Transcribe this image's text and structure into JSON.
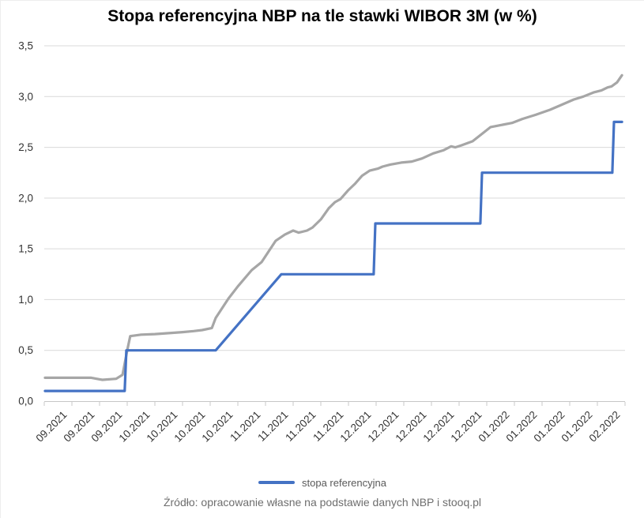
{
  "title": "Stopa referencyjna NBP na tle stawki WIBOR 3M (w %)",
  "source": "Źródło: opracowanie własne na podstawie danych NBP i stooq.pl",
  "legend": {
    "items": [
      {
        "label": "stopa referencyjna",
        "color": "#4472C4"
      }
    ]
  },
  "colors": {
    "accent_blue": "#4472C4",
    "line_gray": "#A6A6A6",
    "grid": "#D9D9D9",
    "axis": "#C6C6C6",
    "tick": "#C9C9C9",
    "tick_text": "#333333",
    "title_text": "#000000",
    "legend_text": "#595959",
    "source_text": "#6E6E6E"
  },
  "chart_data": {
    "type": "line",
    "title": "Stopa referencyjna NBP na tle stawki WIBOR 3M (w %)",
    "xlabel": "",
    "ylabel": "",
    "ylim": [
      0,
      3.5
    ],
    "grid": true,
    "legend_position": "bottom",
    "y_ticks": [
      [
        0.0,
        "0,0"
      ],
      [
        0.5,
        "0,5"
      ],
      [
        1.0,
        "1,0"
      ],
      [
        1.5,
        "1,5"
      ],
      [
        2.0,
        "2,0"
      ],
      [
        2.5,
        "2,5"
      ],
      [
        3.0,
        "3,0"
      ],
      [
        3.5,
        "3,5"
      ]
    ],
    "x_tick_labels": [
      "09.2021",
      "09.2021",
      "09.2021",
      "10.2021",
      "10.2021",
      "10.2021",
      "10.2021",
      "11.2021",
      "11.2021",
      "11.2021",
      "11.2021",
      "12.2021",
      "12.2021",
      "12.2021",
      "12.2021",
      "12.2021",
      "01.2022",
      "01.2022",
      "01.2022",
      "01.2022",
      "02.2022"
    ],
    "x_unit": "weekly categories, data x in category-index units 0..21",
    "series": [
      {
        "name": "WIBOR 3M",
        "color": "#A6A6A6",
        "width": 3.2,
        "in_legend": false,
        "points": [
          [
            0.03,
            0.23
          ],
          [
            1.0,
            0.23
          ],
          [
            1.7,
            0.23
          ],
          [
            2.1,
            0.21
          ],
          [
            2.6,
            0.22
          ],
          [
            2.83,
            0.26
          ],
          [
            3.0,
            0.5
          ],
          [
            3.11,
            0.64
          ],
          [
            3.5,
            0.655
          ],
          [
            4.0,
            0.66
          ],
          [
            4.5,
            0.67
          ],
          [
            5.0,
            0.68
          ],
          [
            5.4,
            0.69
          ],
          [
            5.71,
            0.7
          ],
          [
            6.06,
            0.72
          ],
          [
            6.2,
            0.82
          ],
          [
            6.66,
            1.01
          ],
          [
            7.0,
            1.13
          ],
          [
            7.5,
            1.29
          ],
          [
            7.86,
            1.37
          ],
          [
            8.37,
            1.58
          ],
          [
            8.7,
            1.64
          ],
          [
            9.0,
            1.68
          ],
          [
            9.2,
            1.66
          ],
          [
            9.5,
            1.68
          ],
          [
            9.7,
            1.71
          ],
          [
            10.0,
            1.79
          ],
          [
            10.29,
            1.9
          ],
          [
            10.51,
            1.96
          ],
          [
            10.71,
            1.99
          ],
          [
            11.0,
            2.08
          ],
          [
            11.23,
            2.14
          ],
          [
            11.49,
            2.22
          ],
          [
            11.77,
            2.27
          ],
          [
            12.06,
            2.29
          ],
          [
            12.23,
            2.31
          ],
          [
            12.51,
            2.33
          ],
          [
            12.91,
            2.35
          ],
          [
            13.29,
            2.36
          ],
          [
            13.66,
            2.39
          ],
          [
            14.06,
            2.44
          ],
          [
            14.43,
            2.47
          ],
          [
            14.71,
            2.51
          ],
          [
            14.86,
            2.5
          ],
          [
            15.09,
            2.52
          ],
          [
            15.49,
            2.56
          ],
          [
            15.86,
            2.64
          ],
          [
            16.14,
            2.7
          ],
          [
            16.91,
            2.74
          ],
          [
            17.29,
            2.78
          ],
          [
            17.77,
            2.82
          ],
          [
            18.29,
            2.87
          ],
          [
            18.71,
            2.92
          ],
          [
            19.14,
            2.97
          ],
          [
            19.49,
            3.0
          ],
          [
            19.86,
            3.04
          ],
          [
            20.14,
            3.06
          ],
          [
            20.37,
            3.09
          ],
          [
            20.51,
            3.1
          ],
          [
            20.71,
            3.14
          ],
          [
            20.89,
            3.21
          ]
        ]
      },
      {
        "name": "stopa referencyjna",
        "color": "#4472C4",
        "width": 3.2,
        "in_legend": true,
        "points": [
          [
            0.03,
            0.1
          ],
          [
            2.91,
            0.1
          ],
          [
            2.97,
            0.5
          ],
          [
            6.2,
            0.5
          ],
          [
            8.57,
            1.25
          ],
          [
            11.91,
            1.25
          ],
          [
            11.97,
            1.75
          ],
          [
            15.77,
            1.75
          ],
          [
            15.83,
            2.25
          ],
          [
            20.54,
            2.25
          ],
          [
            20.6,
            2.75
          ],
          [
            20.89,
            2.75
          ]
        ]
      }
    ]
  }
}
